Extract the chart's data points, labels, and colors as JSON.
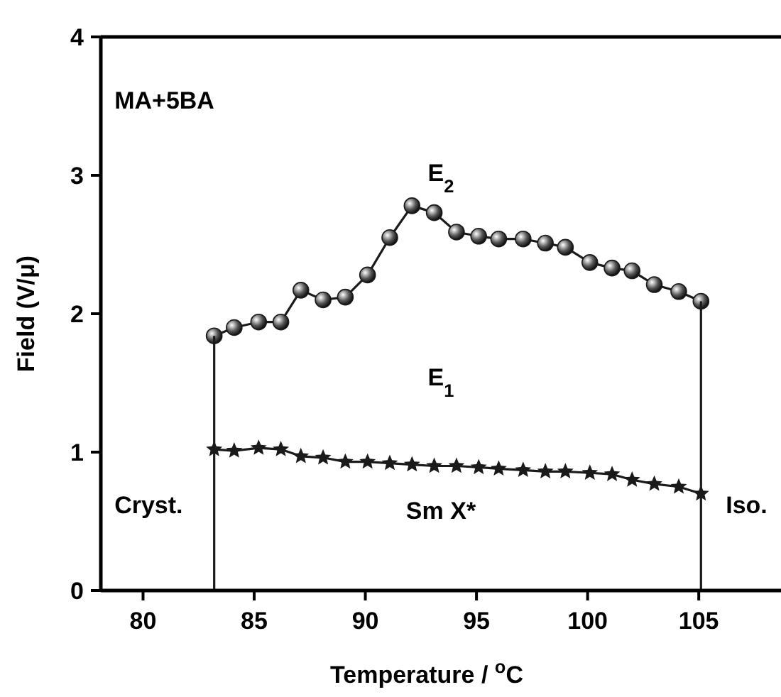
{
  "chart_data": {
    "type": "line",
    "xlabel": "Temperature / $^{o}$C",
    "ylabel": "Field (V/μ)",
    "xlim": [
      78.1,
      108.7
    ],
    "ylim": [
      0,
      4
    ],
    "xticks": [
      80,
      85,
      90,
      95,
      100,
      105
    ],
    "yticks": [
      0,
      1,
      2,
      3,
      4
    ],
    "grid": false,
    "line_style": "solid",
    "series": [
      {
        "color": "#1a1a1a",
        "marker": "circle",
        "x": [
          83.2,
          84.1,
          85.2,
          86.2,
          87.1,
          88.1,
          89.1,
          90.1,
          91.1,
          92.1,
          93.1,
          94.1,
          95.1,
          96.0,
          97.1,
          98.1,
          99.0,
          100.1,
          101.1,
          102.0,
          103.0,
          104.1,
          105.1
        ],
        "values": [
          1.84,
          1.9,
          1.94,
          1.94,
          2.17,
          2.1,
          2.12,
          2.28,
          2.55,
          2.78,
          2.73,
          2.59,
          2.56,
          2.54,
          2.54,
          2.51,
          2.48,
          2.37,
          2.33,
          2.31,
          2.21,
          2.16,
          2.09
        ]
      },
      {
        "color": "#1a1a1a",
        "marker": "star",
        "x": [
          83.2,
          84.1,
          85.2,
          86.2,
          87.1,
          88.1,
          89.1,
          90.1,
          91.1,
          92.1,
          93.1,
          94.1,
          95.1,
          96.0,
          97.1,
          98.1,
          99.0,
          100.1,
          101.1,
          102.0,
          103.0,
          104.1,
          105.1
        ],
        "values": [
          1.02,
          1.01,
          1.03,
          1.02,
          0.97,
          0.96,
          0.93,
          0.93,
          0.92,
          0.91,
          0.9,
          0.9,
          0.89,
          0.88,
          0.87,
          0.86,
          0.86,
          0.85,
          0.84,
          0.8,
          0.77,
          0.75,
          0.7
        ]
      },
      {
        "color": "#1a1a1a",
        "marker": "none",
        "x": [
          83.2,
          83.2
        ],
        "values": [
          0,
          1.84
        ]
      },
      {
        "color": "#1a1a1a",
        "marker": "none",
        "x": [
          105.1,
          105.1
        ],
        "values": [
          0,
          2.09
        ]
      }
    ],
    "annotations": [
      "MA+5BA",
      "E$_{2}$",
      "E$_{1}$",
      "Cryst.",
      "Sm X*",
      "Iso."
    ]
  }
}
